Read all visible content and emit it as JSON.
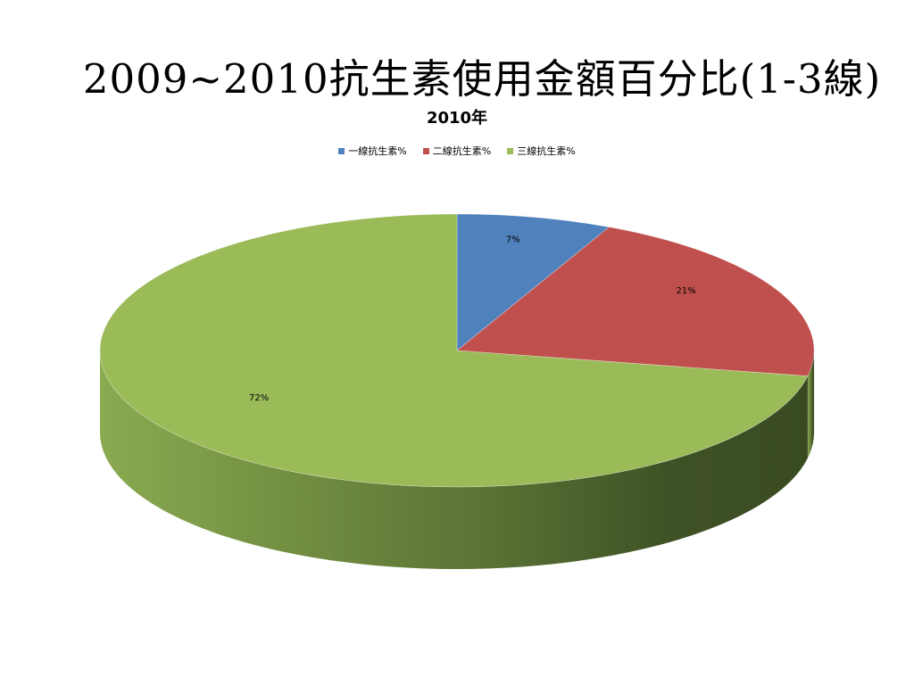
{
  "slide": {
    "title": "2009~2010抗生素使用金額百分比(1-3線)"
  },
  "chart_data": {
    "type": "pie",
    "title": "2010年",
    "legend_position": "top",
    "three_d": true,
    "slices": [
      {
        "name": "一線抗生素%",
        "value": 7,
        "label": "7%",
        "color": "#4F81BD"
      },
      {
        "name": "二線抗生素%",
        "value": 21,
        "label": "21%",
        "color": "#C0504D"
      },
      {
        "name": "三線抗生素%",
        "value": 72,
        "label": "72%",
        "color": "#9BBB59"
      }
    ]
  }
}
